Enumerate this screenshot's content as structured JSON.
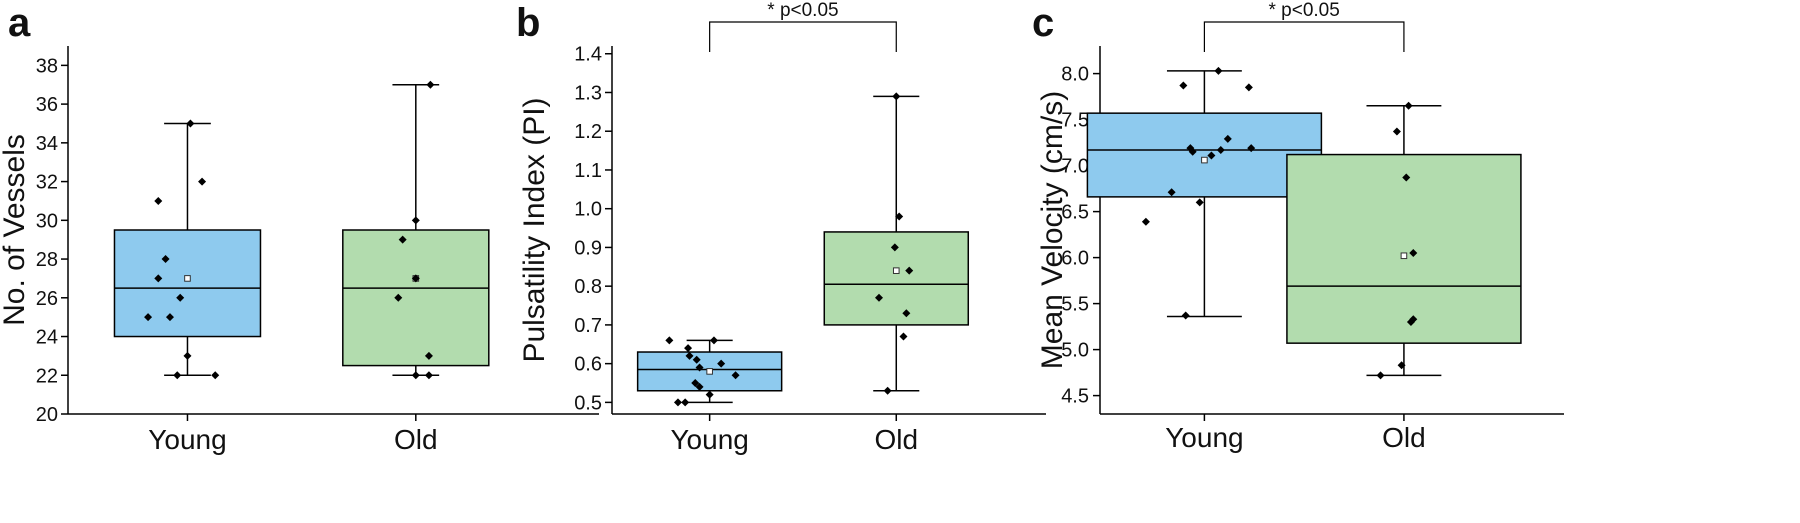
{
  "colors": {
    "young": "#8ecaee",
    "old": "#b2dcae",
    "ink": "#000000"
  },
  "chart_data": [
    {
      "type": "box",
      "panel": "a",
      "ylabel": "No. of Vessels",
      "ylim": [
        20,
        39
      ],
      "yticks": [
        20,
        22,
        24,
        26,
        28,
        30,
        32,
        34,
        36,
        38
      ],
      "tick_labels": [
        "20",
        "22",
        "24",
        "26",
        "28",
        "30",
        "32",
        "34",
        "36",
        "38"
      ],
      "categories": [
        "Young",
        "Old"
      ],
      "significance": null,
      "groups": [
        {
          "name": "Young",
          "color_key": "young",
          "whisker_low": 22,
          "q1": 24,
          "median": 26.5,
          "q3": 29.5,
          "whisker_high": 35,
          "mean": 27,
          "points": [
            [
              0.02,
              35
            ],
            [
              0.1,
              32
            ],
            [
              -0.2,
              31
            ],
            [
              -0.15,
              28
            ],
            [
              -0.2,
              27
            ],
            [
              -0.05,
              26
            ],
            [
              -0.27,
              25
            ],
            [
              -0.12,
              25
            ],
            [
              0.0,
              23
            ],
            [
              -0.07,
              22
            ],
            [
              0.19,
              22
            ]
          ]
        },
        {
          "name": "Old",
          "color_key": "old",
          "whisker_low": 22,
          "q1": 22.5,
          "median": 26.5,
          "q3": 29.5,
          "whisker_high": 37,
          "mean": 27,
          "points": [
            [
              0.1,
              37
            ],
            [
              0.0,
              30
            ],
            [
              -0.09,
              29
            ],
            [
              0.0,
              27
            ],
            [
              -0.12,
              26
            ],
            [
              0.09,
              23
            ],
            [
              0.0,
              22
            ],
            [
              0.09,
              22
            ]
          ]
        }
      ]
    },
    {
      "type": "box",
      "panel": "b",
      "ylabel": "Pulsatility Index (PI)",
      "ylim": [
        0.47,
        1.42
      ],
      "yticks": [
        0.5,
        0.6,
        0.7,
        0.8,
        0.9,
        1.0,
        1.1,
        1.2,
        1.3,
        1.4
      ],
      "tick_labels": [
        "0.5",
        "0.6",
        "0.7",
        "0.8",
        "0.9",
        "1.0",
        "1.1",
        "1.2",
        "1.3",
        "1.4"
      ],
      "categories": [
        "Young",
        "Old"
      ],
      "significance": "* p<0.05",
      "groups": [
        {
          "name": "Young",
          "color_key": "young",
          "whisker_low": 0.5,
          "q1": 0.53,
          "median": 0.585,
          "q3": 0.63,
          "whisker_high": 0.66,
          "mean": 0.58,
          "points": [
            [
              -0.28,
              0.66
            ],
            [
              0.03,
              0.66
            ],
            [
              -0.15,
              0.64
            ],
            [
              -0.14,
              0.62
            ],
            [
              -0.09,
              0.61
            ],
            [
              0.08,
              0.6
            ],
            [
              -0.07,
              0.59
            ],
            [
              0.18,
              0.57
            ],
            [
              -0.1,
              0.55
            ],
            [
              -0.07,
              0.54
            ],
            [
              0.0,
              0.52
            ],
            [
              -0.22,
              0.5
            ],
            [
              -0.17,
              0.5
            ]
          ]
        },
        {
          "name": "Old",
          "color_key": "old",
          "whisker_low": 0.53,
          "q1": 0.7,
          "median": 0.805,
          "q3": 0.94,
          "whisker_high": 1.29,
          "mean": 0.84,
          "points": [
            [
              0.0,
              1.29
            ],
            [
              0.02,
              0.98
            ],
            [
              -0.01,
              0.9
            ],
            [
              0.09,
              0.84
            ],
            [
              -0.12,
              0.77
            ],
            [
              0.07,
              0.73
            ],
            [
              0.05,
              0.67
            ],
            [
              -0.06,
              0.53
            ]
          ]
        }
      ]
    },
    {
      "type": "box",
      "panel": "c",
      "ylabel": "Mean Velocity (cm/s)",
      "ylim": [
        4.3,
        8.3
      ],
      "yticks": [
        4.5,
        5.0,
        5.5,
        6.0,
        6.5,
        7.0,
        7.5,
        8.0
      ],
      "tick_labels": [
        "4.5",
        "5.0",
        "5.5",
        "6.0",
        "6.5",
        "7.0",
        "7.5",
        "8.0"
      ],
      "categories": [
        "Young",
        "Old"
      ],
      "significance": "* p<0.05",
      "groups": [
        {
          "name": "Young",
          "color_key": "young",
          "whisker_low": 5.36,
          "q1": 6.66,
          "median": 7.17,
          "q3": 7.57,
          "whisker_high": 8.03,
          "mean": 7.06,
          "points": [
            [
              0.06,
              8.03
            ],
            [
              -0.09,
              7.87
            ],
            [
              0.19,
              7.85
            ],
            [
              0.1,
              7.29
            ],
            [
              -0.06,
              7.19
            ],
            [
              0.07,
              7.17
            ],
            [
              0.2,
              7.19
            ],
            [
              -0.05,
              7.15
            ],
            [
              0.03,
              7.11
            ],
            [
              -0.14,
              6.71
            ],
            [
              -0.02,
              6.6
            ],
            [
              -0.25,
              6.39
            ],
            [
              -0.08,
              5.37
            ]
          ]
        },
        {
          "name": "Old",
          "color_key": "old",
          "whisker_low": 4.72,
          "q1": 5.07,
          "median": 5.69,
          "q3": 7.12,
          "whisker_high": 7.65,
          "mean": 6.02,
          "points": [
            [
              0.02,
              7.65
            ],
            [
              -0.03,
              7.37
            ],
            [
              0.01,
              6.87
            ],
            [
              0.04,
              6.05
            ],
            [
              0.04,
              5.33
            ],
            [
              0.03,
              5.3
            ],
            [
              -0.01,
              4.83
            ],
            [
              -0.1,
              4.72
            ]
          ]
        }
      ]
    }
  ]
}
